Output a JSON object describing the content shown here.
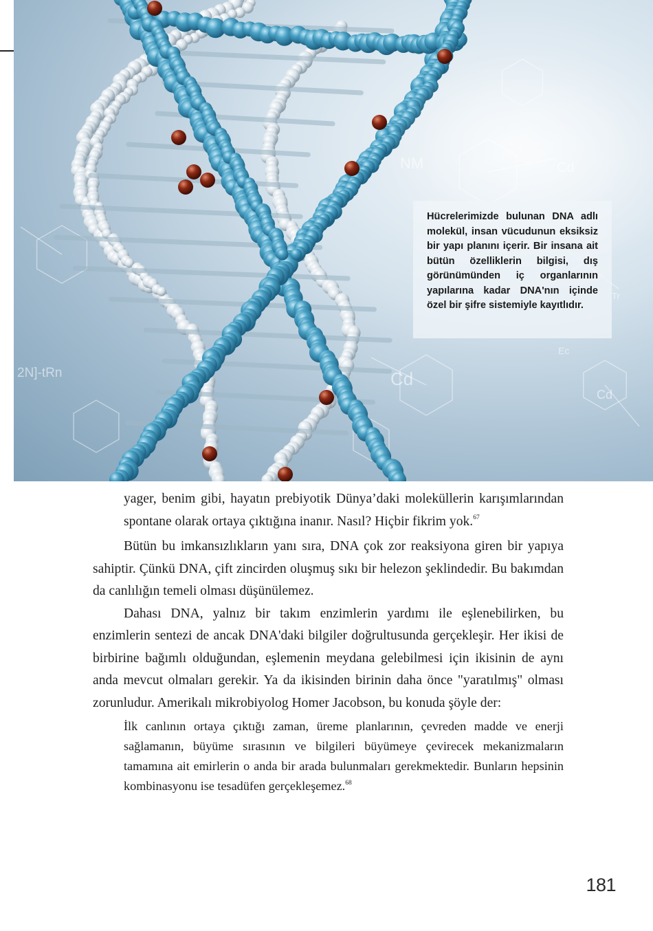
{
  "figure": {
    "caption": "Hücrelerimizde bulunan DNA adlı molekül, insan vücudunun eksiksiz bir yapı planını içerir. Bir insana ait bütün özellikle­rin bilgisi, dış görünümünden iç organlarının yapılarına kadar DNA'nın içinde özel bir şifre sistemiyle kayıtlıdır.",
    "background_labels": [
      "NM",
      "Cd",
      "Cd",
      "Cd",
      "Ec",
      "2N]-tRn",
      "Tr"
    ],
    "colors": {
      "strand_blue": "#3f93b6",
      "strand_white": "#dfe8ef",
      "node_red": "#7a1f12",
      "sky": "#c9dae6"
    }
  },
  "body": {
    "p1_text": "yager, benim gibi, hayatın prebiyotik Dünya’daki moleküllerin karışım­larından spontane olarak ortaya çıktığına inanır. Nasıl? Hiçbir fikrim yok.",
    "p1_ref": "67",
    "p2_text": "Bütün bu imkansızlıkların yanı sıra, DNA çok zor reaksiyona giren bir yapıya sahiptir. Çünkü DNA, çift zincirden oluşmuş sıkı bir helezon şeklindedir. Bu bakımdan da canlılığın temeli olması düşünülemez.",
    "p3_text": "Dahası DNA, yalnız bir takım enzimlerin yardımı ile eşlenebilirken, bu enzimlerin sentezi de ancak DNA'daki bilgiler doğrultusunda gerçek­leşir. Her ikisi de birbirine bağımlı olduğundan, eşlemenin meydana ge­lebilmesi için ikisinin de aynı anda mevcut olmaları gerekir. Ya da ikisin­den birinin daha önce \"yaratılmış\" olması zorunludur. Amerikalı mikro­biyolog Homer Jacobson, bu konuda şöyle der:",
    "quote_text": "İlk canlının ortaya çıktığı zaman, üreme planlarının, çevreden madde ve enerji sağlamanın, büyüme sırasının ve bilgileri büyümeye çevirecek me­kanizmaların tamamına ait emirlerin o anda bir arada bulunmaları ge­rekmektedir. Bunların hepsinin kombinasyonu ise tesadüfen gerçekleşe­mez.",
    "quote_ref": "68"
  },
  "page_number": "181"
}
